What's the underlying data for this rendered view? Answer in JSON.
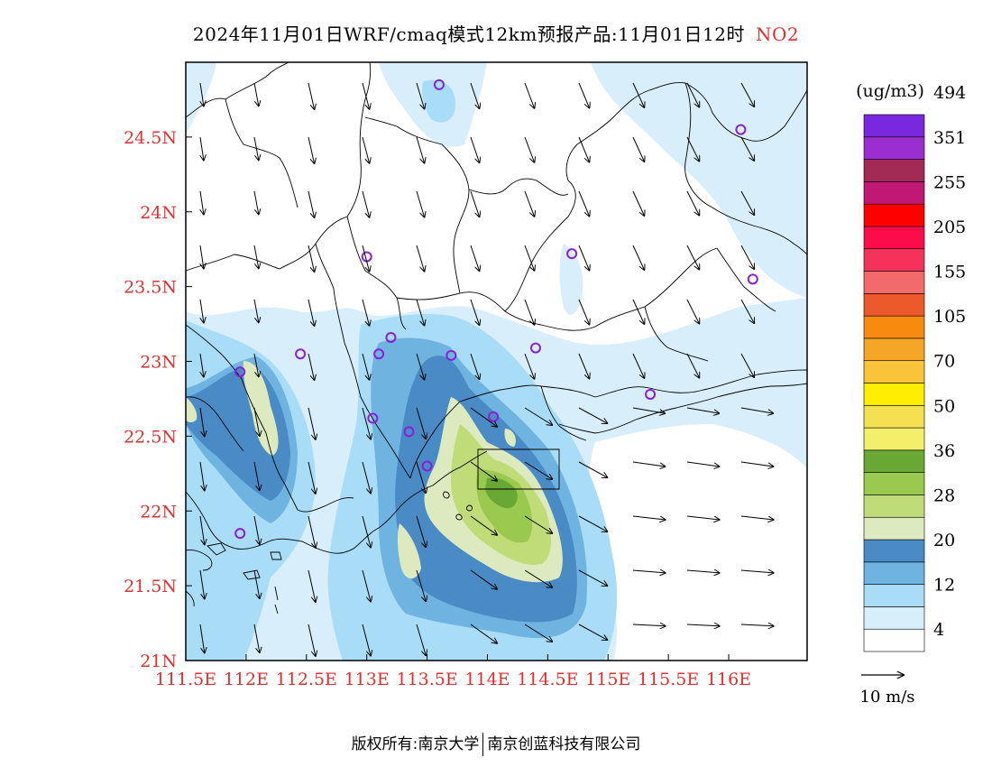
{
  "title": {
    "text": "2024年11月01日WRF/cmaq模式12km预报产品:11月01日12时",
    "species": "NO2"
  },
  "colorbar": {
    "unit": "(ug/m3)",
    "labels": [
      "4",
      "12",
      "20",
      "28",
      "36",
      "50",
      "70",
      "105",
      "155",
      "205",
      "255",
      "351",
      "494"
    ],
    "colors": [
      "#ffffff",
      "#d8eefa",
      "#a9dcf6",
      "#6fb3e0",
      "#4a8ac5",
      "#dde9bf",
      "#c0dc78",
      "#99c94e",
      "#6aa836",
      "#f4ef6b",
      "#f4e050",
      "#ffee00",
      "#f9c43a",
      "#f6a627",
      "#f98a10",
      "#ec5a2c",
      "#f36a6a",
      "#f5335a",
      "#fc0c4a",
      "#ff0000",
      "#c01874",
      "#a42a56",
      "#9a2ed0",
      "#7a28e0"
    ]
  },
  "wind_legend": {
    "label": "10 m/s"
  },
  "axes": {
    "lon_labels": [
      "111.5E",
      "112E",
      "112.5E",
      "113E",
      "113.5E",
      "114E",
      "114.5E",
      "115E",
      "115.5E",
      "116E"
    ],
    "lat_labels": [
      "24.5N",
      "24N",
      "23.5N",
      "23N",
      "22.5N",
      "22N",
      "21.5N",
      "21N"
    ],
    "lon_range": [
      111.5,
      116.65
    ],
    "lat_range": [
      21.0,
      25.0
    ]
  },
  "stations": [
    [
      113.6,
      24.85
    ],
    [
      116.1,
      24.55
    ],
    [
      113.0,
      23.7
    ],
    [
      114.7,
      23.72
    ],
    [
      116.2,
      23.55
    ],
    [
      112.45,
      23.05
    ],
    [
      113.1,
      23.05
    ],
    [
      113.2,
      23.16
    ],
    [
      113.7,
      23.04
    ],
    [
      114.4,
      23.09
    ],
    [
      111.95,
      22.93
    ],
    [
      113.05,
      22.62
    ],
    [
      113.35,
      22.53
    ],
    [
      114.05,
      22.63
    ],
    [
      113.5,
      22.3
    ],
    [
      115.35,
      22.78
    ],
    [
      111.95,
      21.85
    ]
  ],
  "footer": {
    "left": "版权所有:南京大学",
    "right": "南京创蓝科技有限公司"
  }
}
